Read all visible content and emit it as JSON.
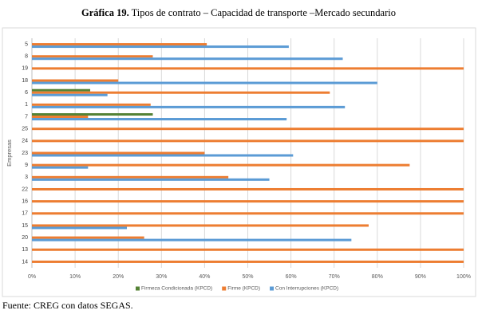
{
  "chart_data": {
    "type": "hbar",
    "title_prefix": "Gráfica 19.",
    "title": "Tipos de contrato – Capacidad de transporte –Mercado secundario",
    "y_label": "Empresas",
    "source": "Fuente: CREG con datos SEGAS.",
    "categories": [
      "5",
      "8",
      "19",
      "18",
      "6",
      "1",
      "7",
      "25",
      "24",
      "23",
      "9",
      "3",
      "22",
      "16",
      "17",
      "15",
      "20",
      "13",
      "14"
    ],
    "series": [
      {
        "name": "Firmeza Condicionada (KPCD)",
        "color": "#548235",
        "values": [
          null,
          null,
          null,
          null,
          13.5,
          null,
          28,
          null,
          null,
          null,
          null,
          null,
          null,
          null,
          null,
          null,
          null,
          null,
          null
        ]
      },
      {
        "name": "Firme (KPCD)",
        "color": "#ed7d31",
        "values": [
          40.5,
          28,
          100,
          20,
          69,
          27.5,
          13,
          100,
          100,
          40,
          87.5,
          45.5,
          100,
          100,
          100,
          78,
          26,
          100,
          100
        ]
      },
      {
        "name": "Con Interrupciones (KPCD)",
        "color": "#5b9bd5",
        "values": [
          59.5,
          72,
          null,
          80,
          17.5,
          72.5,
          59,
          null,
          null,
          60.5,
          13,
          55,
          null,
          null,
          null,
          22,
          74,
          null,
          null
        ]
      }
    ],
    "xlim": [
      0,
      100
    ],
    "xticks": [
      {
        "value": 0,
        "label": "0%"
      },
      {
        "value": 10,
        "label": "10%"
      },
      {
        "value": 20,
        "label": "20%"
      },
      {
        "value": 30,
        "label": "30%"
      },
      {
        "value": 40,
        "label": "40%"
      },
      {
        "value": 50,
        "label": "50%"
      },
      {
        "value": 60,
        "label": "60%"
      },
      {
        "value": 70,
        "label": "70%"
      },
      {
        "value": 80,
        "label": "80%"
      },
      {
        "value": 90,
        "label": "90%"
      },
      {
        "value": 100,
        "label": "100%"
      }
    ],
    "grid": true
  }
}
